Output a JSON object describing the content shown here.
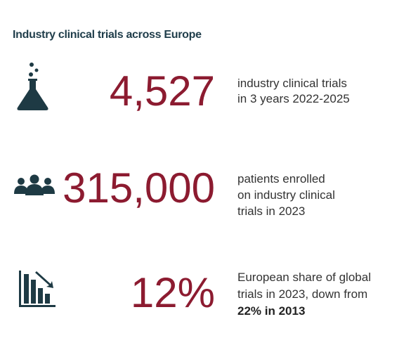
{
  "title": "Industry clinical trials across Europe",
  "stats": [
    {
      "value": "4,527",
      "description": [
        "industry clinical trials",
        "in 3 years 2022-2025"
      ]
    },
    {
      "value": "315,000",
      "description": [
        "patients enrolled",
        "on industry clinical",
        "trials in 2023"
      ]
    },
    {
      "value": "12%",
      "description": [
        "European share of global",
        "trials in 2023, down from"
      ],
      "highlight": "22% in 2013"
    }
  ]
}
